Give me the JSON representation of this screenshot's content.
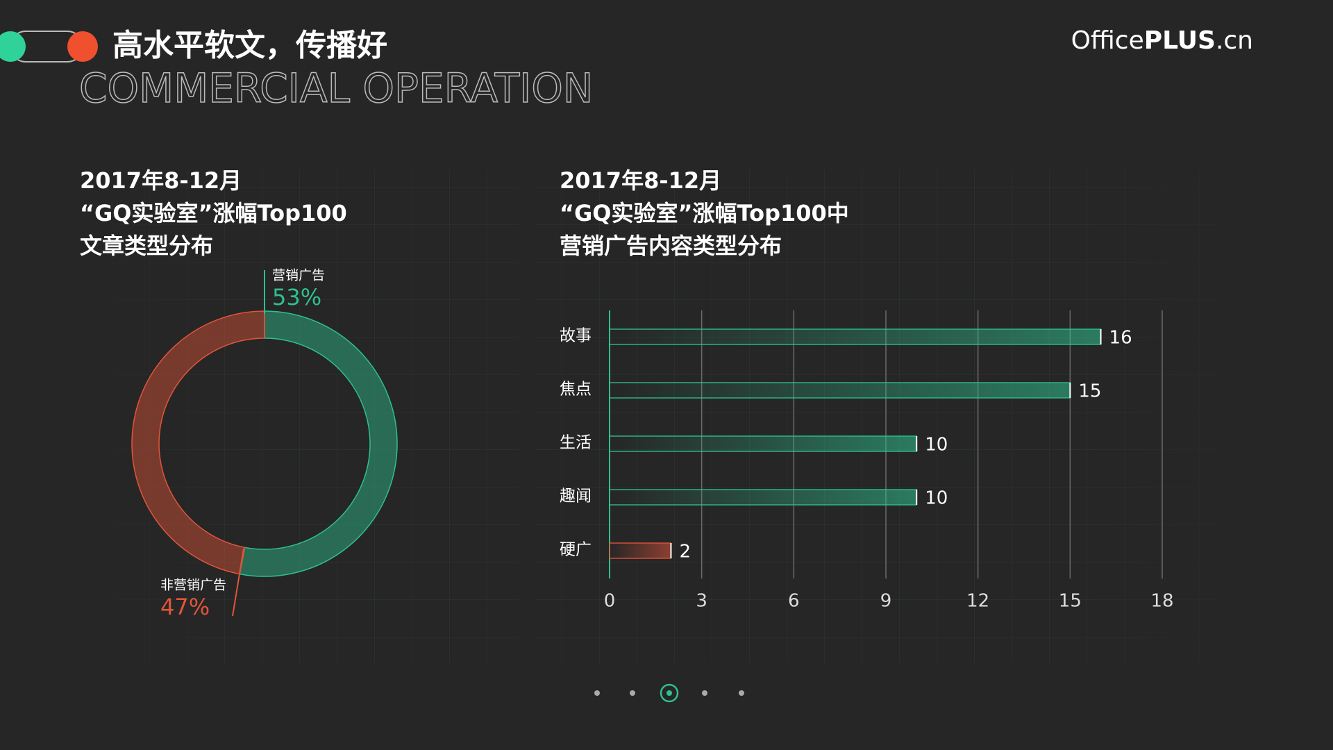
{
  "header": {
    "title": "高水平软文，传播好",
    "subtitle": "COMMERCIAL OPERATION",
    "brand": [
      "Office",
      "PLUS",
      ".cn"
    ]
  },
  "chart_data": [
    {
      "type": "pie",
      "title": [
        "2017年8-12月",
        "“GQ实验室”涨幅Top100",
        "文章类型分布"
      ],
      "categories": [
        "营销广告",
        "非营销广告"
      ],
      "values": [
        53,
        47
      ],
      "value_labels": [
        "53%",
        "47%"
      ],
      "colors": [
        "#2fc08f",
        "#e0553a"
      ]
    },
    {
      "type": "bar",
      "title": [
        "2017年8-12月",
        "“GQ实验室”涨幅Top100中",
        "营销广告内容类型分布"
      ],
      "categories": [
        "故事",
        "焦点",
        "生活",
        "趣闻",
        "硬广"
      ],
      "values": [
        16,
        15,
        10,
        10,
        2
      ],
      "colors": [
        "#2fc08f",
        "#2fc08f",
        "#2fc08f",
        "#2fc08f",
        "#e0553a"
      ],
      "xlim": [
        0,
        18
      ],
      "xticks": [
        0,
        3,
        6,
        9,
        12,
        15,
        18
      ],
      "grid": true
    }
  ]
}
